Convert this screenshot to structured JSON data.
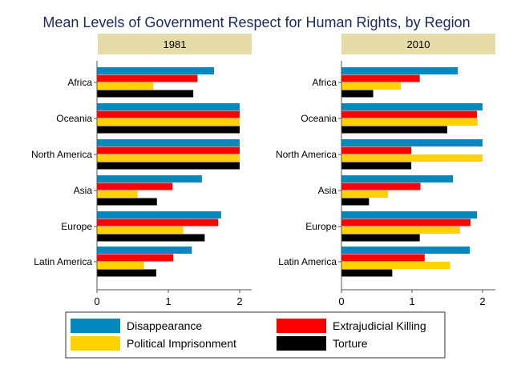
{
  "chart_data": {
    "type": "bar",
    "orientation": "horizontal",
    "title": "Mean Levels of Government Respect for Human Rights, by Region",
    "categories": [
      "Africa",
      "Oceania",
      "North America",
      "Asia",
      "Europe",
      "Latin America"
    ],
    "xlim": [
      0,
      2
    ],
    "xticks": [
      "0",
      "1",
      "2"
    ],
    "grid": false,
    "legend_position": "bottom",
    "colors": {
      "Disappearance": "#0088bf",
      "Extrajudicial Killing": "#ff0000",
      "Political Imprisonment": "#ffd200",
      "Torture": "#000000"
    },
    "panels": [
      {
        "label": "1981",
        "series": [
          {
            "name": "Disappearance",
            "values": [
              1.64,
              2.0,
              2.0,
              1.47,
              1.74,
              1.33
            ]
          },
          {
            "name": "Extrajudicial Killing",
            "values": [
              1.41,
              2.0,
              2.0,
              1.06,
              1.7,
              1.07
            ]
          },
          {
            "name": "Political Imprisonment",
            "values": [
              0.79,
              2.0,
              2.0,
              0.57,
              1.21,
              0.66
            ]
          },
          {
            "name": "Torture",
            "values": [
              1.35,
              2.0,
              2.0,
              0.84,
              1.51,
              0.83
            ]
          }
        ]
      },
      {
        "label": "2010",
        "series": [
          {
            "name": "Disappearance",
            "values": [
              1.65,
              2.0,
              2.0,
              1.58,
              1.92,
              1.82
            ]
          },
          {
            "name": "Extrajudicial Killing",
            "values": [
              1.11,
              1.92,
              0.99,
              1.12,
              1.83,
              1.18
            ]
          },
          {
            "name": "Political Imprisonment",
            "values": [
              0.84,
              1.93,
              2.0,
              0.66,
              1.68,
              1.54
            ]
          },
          {
            "name": "Torture",
            "values": [
              0.45,
              1.5,
              0.99,
              0.39,
              1.11,
              0.72
            ]
          }
        ]
      }
    ],
    "legend": [
      "Disappearance",
      "Extrajudicial Killing",
      "Political Imprisonment",
      "Torture"
    ]
  }
}
